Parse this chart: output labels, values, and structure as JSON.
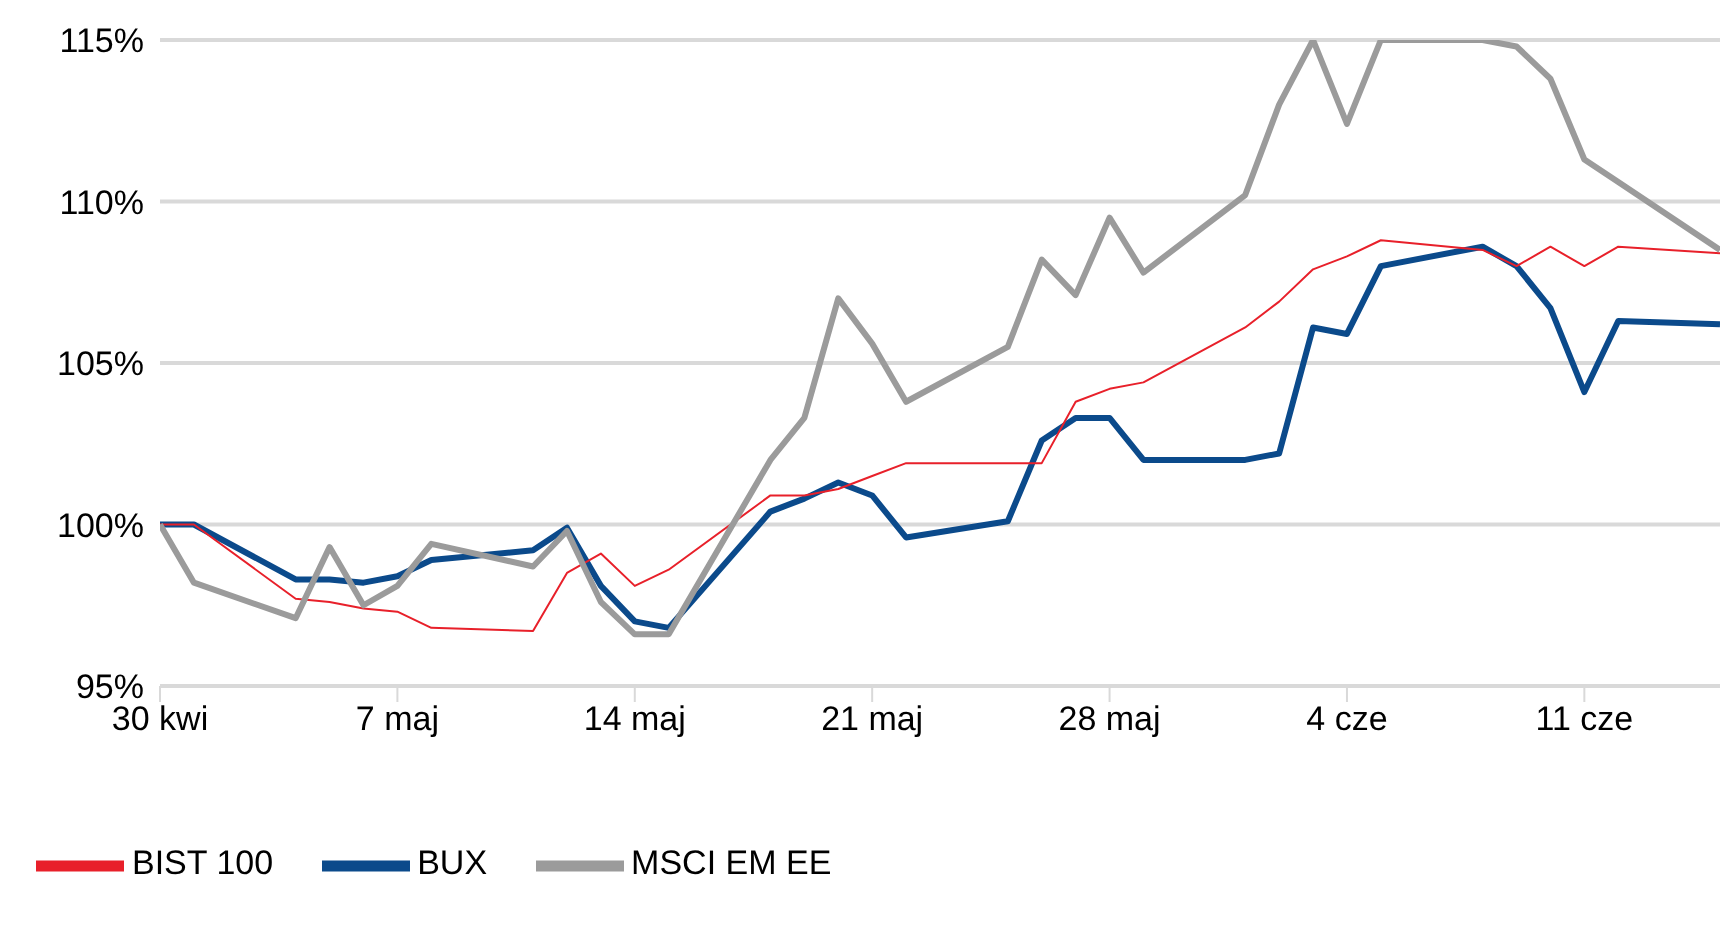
{
  "chart_data": {
    "type": "line",
    "x": [
      "--04-30",
      "--05-01",
      "--05-04",
      "--05-05",
      "--05-06",
      "--05-07",
      "--05-08",
      "--05-11",
      "--05-12",
      "--05-13",
      "--05-14",
      "--05-15",
      "--05-18",
      "--05-19",
      "--05-20",
      "--05-21",
      "--05-22",
      "--05-25",
      "--05-26",
      "--05-27",
      "--05-28",
      "--05-29",
      "--06-01",
      "--06-02",
      "--06-03",
      "--06-04",
      "--06-05",
      "--06-08",
      "--06-09",
      "--06-10",
      "--06-11",
      "--06-12",
      "--06-15"
    ],
    "series": [
      {
        "name": "BUX",
        "color": "#0b4a8b",
        "values": [
          100,
          100,
          98.3,
          98.3,
          98.2,
          98.4,
          98.9,
          99.2,
          99.9,
          98.1,
          97.0,
          96.8,
          100.4,
          100.8,
          101.3,
          100.9,
          99.6,
          100.1,
          102.6,
          103.3,
          103.3,
          102.0,
          102.0,
          102.2,
          106.1,
          105.9,
          108.0,
          108.6,
          108.0,
          106.7,
          104.1,
          106.3,
          106.2
        ]
      },
      {
        "name": "BIST 100",
        "color": "#e8202a",
        "values": [
          100,
          100,
          97.7,
          97.6,
          97.4,
          97.3,
          96.8,
          96.7,
          98.5,
          99.1,
          98.1,
          98.6,
          100.9,
          100.9,
          101.1,
          101.5,
          101.9,
          101.9,
          101.9,
          103.8,
          104.2,
          104.4,
          106.1,
          106.9,
          107.9,
          108.3,
          108.8,
          108.5,
          108.0,
          108.6,
          108.0,
          108.6,
          108.4
        ]
      },
      {
        "name": "MSCI EM EE",
        "color": "#9b9b9b",
        "values": [
          100,
          98.2,
          97.1,
          99.3,
          97.5,
          98.1,
          99.4,
          98.7,
          99.8,
          97.6,
          96.6,
          96.6,
          102.0,
          103.3,
          107.0,
          105.6,
          103.8,
          105.5,
          108.2,
          107.1,
          109.5,
          107.8,
          110.2,
          113.0,
          115.0,
          112.4,
          115.0,
          115.0,
          114.8,
          113.8,
          111.3,
          110.6,
          108.5
        ]
      }
    ],
    "xlim": [
      "--04-30",
      "--06-15"
    ],
    "xticks": [
      {
        "value": "--04-30",
        "label": "30 kwi"
      },
      {
        "value": "--05-07",
        "label": "7 maj"
      },
      {
        "value": "--05-14",
        "label": "14 maj"
      },
      {
        "value": "--05-21",
        "label": "21 maj"
      },
      {
        "value": "--05-28",
        "label": "28 maj"
      },
      {
        "value": "--06-04",
        "label": "4 cze"
      },
      {
        "value": "--06-11",
        "label": "11 cze"
      }
    ],
    "ylim": [
      95,
      115
    ],
    "yticks": [
      {
        "value": 95,
        "label": "95%"
      },
      {
        "value": 100,
        "label": "100%"
      },
      {
        "value": 105,
        "label": "105%"
      },
      {
        "value": 110,
        "label": "110%"
      },
      {
        "value": 115,
        "label": "115%"
      }
    ],
    "grid": "y",
    "legend": "bottom left",
    "marker": "none",
    "line_style": "solid"
  }
}
